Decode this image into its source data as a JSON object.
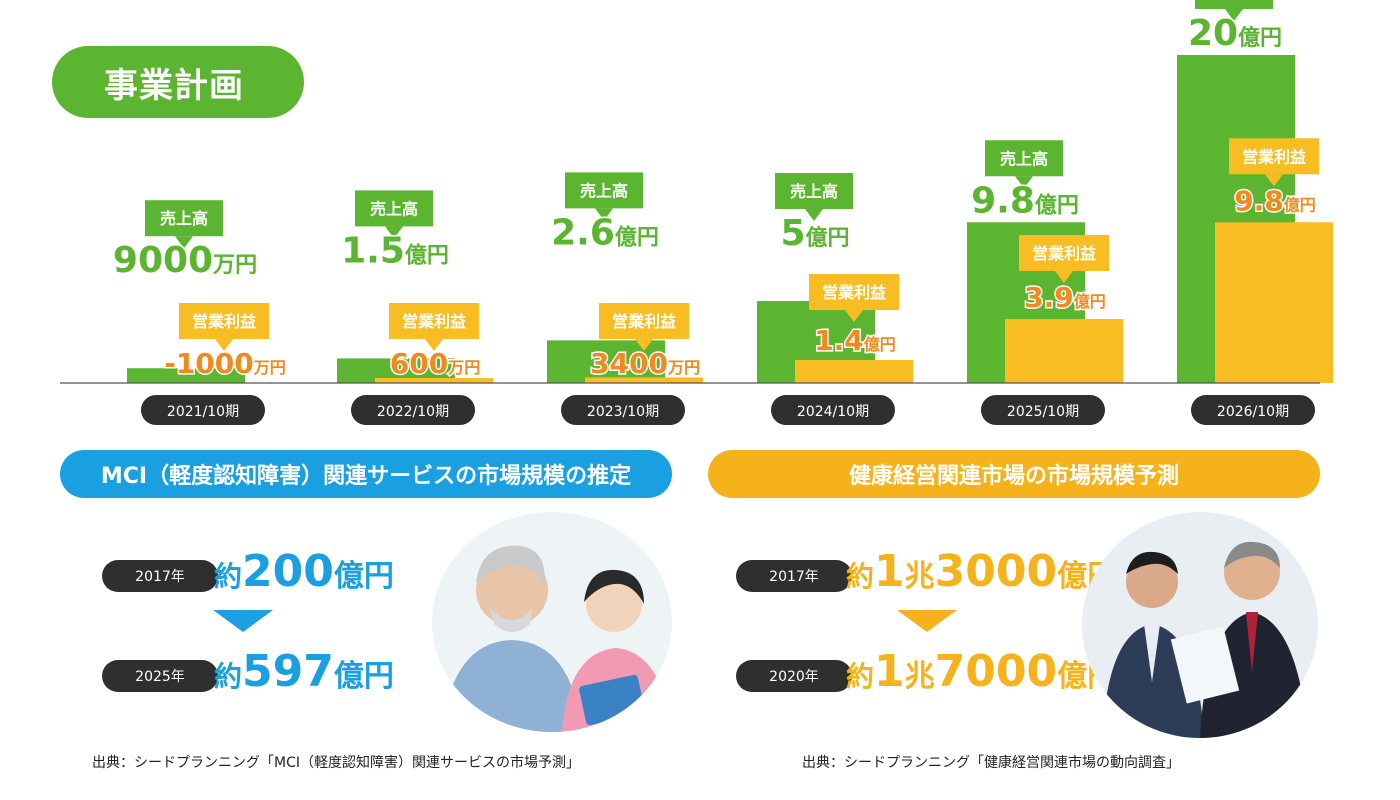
{
  "page_title": "事業計画",
  "chart_data": {
    "type": "bar",
    "title": "",
    "categories": [
      "2021/10期",
      "2022/10期",
      "2023/10期",
      "2024/10期",
      "2025/10期",
      "2026/10期"
    ],
    "series": [
      {
        "name": "売上高",
        "values": [
          0.9,
          1.5,
          2.6,
          5,
          9.8,
          20
        ],
        "labels": [
          {
            "num": "9000",
            "unit": "万円"
          },
          {
            "num": "1.5",
            "unit": "億円"
          },
          {
            "num": "2.6",
            "unit": "億円"
          },
          {
            "num": "5",
            "unit": "億円"
          },
          {
            "num": "9.8",
            "unit": "億円"
          },
          {
            "num": "20",
            "unit": "億円"
          }
        ]
      },
      {
        "name": "営業利益",
        "values": [
          -0.1,
          0.06,
          0.34,
          1.4,
          3.9,
          9.8
        ],
        "labels": [
          {
            "num": "-1000",
            "unit": "万円"
          },
          {
            "num": "600",
            "unit": "万円"
          },
          {
            "num": "3400",
            "unit": "万円"
          },
          {
            "num": "1.4",
            "unit": "億円"
          },
          {
            "num": "3.9",
            "unit": "億円"
          },
          {
            "num": "9.8",
            "unit": "億円"
          }
        ]
      }
    ],
    "value_unit": "億円",
    "colors": {
      "sales": "#5bb531",
      "profit": "#f7bd22",
      "profit_text": "#f08a1c"
    }
  },
  "mci": {
    "title": "MCI（軽度認知障害）関連サービスの市場規模の推定",
    "rows": [
      {
        "year": "2017年",
        "prefix": "約",
        "num": "200",
        "unit": "億円"
      },
      {
        "year": "2025年",
        "prefix": "約",
        "num": "597",
        "unit": "億円"
      }
    ],
    "color": "#1a9fe0",
    "source": "出典：シードプランニング「MCI（軽度認知障害）関連サービスの市場予測」"
  },
  "health": {
    "title": "健康経営関連市場の市場規模予測",
    "rows": [
      {
        "year": "2017年",
        "prefix": "約",
        "num1": "1",
        "mid": "兆",
        "num2": "3000",
        "unit": "億円"
      },
      {
        "year": "2020年",
        "prefix": "約",
        "num1": "1",
        "mid": "兆",
        "num2": "7000",
        "unit": "億円"
      }
    ],
    "color": "#f5b21b",
    "source": "出典：シードプランニング「健康経営関連市場の動向調査」"
  }
}
